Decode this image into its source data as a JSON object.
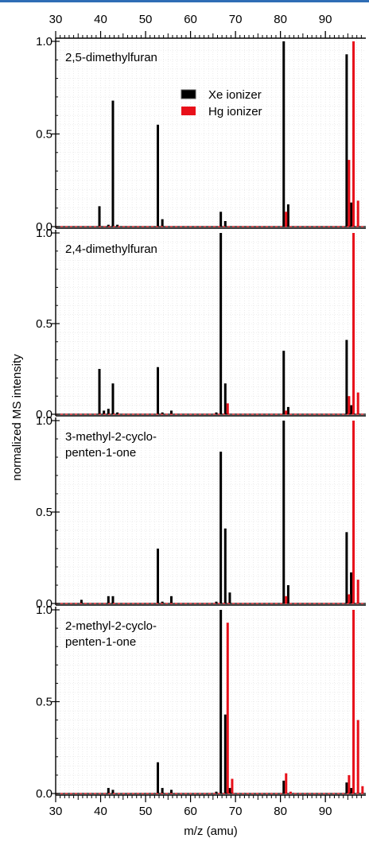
{
  "chart_data": {
    "type": "bar",
    "xlabel": "m/z (amu)",
    "ylabel": "normalized MS intensity",
    "xlim": [
      30,
      99
    ],
    "ylim": [
      0,
      1.0
    ],
    "x_ticks": [
      30,
      40,
      50,
      60,
      70,
      80,
      90
    ],
    "y_ticks": [
      "0.0",
      "0.5",
      "1.0"
    ],
    "legend": {
      "placement": "top-center of first panel",
      "entries": [
        {
          "name": "Xe ionizer",
          "color": "#000000"
        },
        {
          "name": "Hg ionizer",
          "color": "#e8101a"
        }
      ]
    },
    "panels": [
      {
        "label_lines": [
          "2,5-dimethylfuran"
        ],
        "series": [
          {
            "name": "Xe ionizer",
            "color": "#000000",
            "points": [
              [
                40,
                0.11
              ],
              [
                42,
                0.01
              ],
              [
                43,
                0.68
              ],
              [
                44,
                0.01
              ],
              [
                53,
                0.55
              ],
              [
                54,
                0.04
              ],
              [
                67,
                0.08
              ],
              [
                68,
                0.03
              ],
              [
                81,
                1.0
              ],
              [
                82,
                0.12
              ],
              [
                95,
                0.93
              ],
              [
                96,
                0.13
              ]
            ]
          },
          {
            "name": "Hg ionizer",
            "color": "#e8101a",
            "points": [
              [
                81,
                0.08
              ],
              [
                95,
                0.36
              ],
              [
                96,
                1.0
              ],
              [
                97,
                0.14
              ]
            ]
          }
        ]
      },
      {
        "label_lines": [
          "2,4-dimethylfuran"
        ],
        "series": [
          {
            "name": "Xe ionizer",
            "color": "#000000",
            "points": [
              [
                40,
                0.25
              ],
              [
                41,
                0.02
              ],
              [
                42,
                0.03
              ],
              [
                43,
                0.17
              ],
              [
                44,
                0.01
              ],
              [
                53,
                0.26
              ],
              [
                54,
                0.01
              ],
              [
                56,
                0.02
              ],
              [
                66,
                0.01
              ],
              [
                67,
                1.0
              ],
              [
                68,
                0.17
              ],
              [
                81,
                0.35
              ],
              [
                82,
                0.04
              ],
              [
                95,
                0.41
              ],
              [
                96,
                0.05
              ]
            ]
          },
          {
            "name": "Hg ionizer",
            "color": "#e8101a",
            "points": [
              [
                68,
                0.06
              ],
              [
                81,
                0.02
              ],
              [
                95,
                0.1
              ],
              [
                96,
                1.0
              ],
              [
                97,
                0.12
              ]
            ]
          }
        ]
      },
      {
        "label_lines": [
          "3-methyl-2-cyclo-",
          "penten-1-one"
        ],
        "series": [
          {
            "name": "Xe ionizer",
            "color": "#000000",
            "points": [
              [
                36,
                0.02
              ],
              [
                42,
                0.04
              ],
              [
                43,
                0.04
              ],
              [
                53,
                0.3
              ],
              [
                54,
                0.01
              ],
              [
                56,
                0.04
              ],
              [
                66,
                0.01
              ],
              [
                67,
                0.83
              ],
              [
                68,
                0.41
              ],
              [
                69,
                0.06
              ],
              [
                81,
                1.0
              ],
              [
                82,
                0.1
              ],
              [
                95,
                0.39
              ],
              [
                96,
                0.17
              ]
            ]
          },
          {
            "name": "Hg ionizer",
            "color": "#e8101a",
            "points": [
              [
                81,
                0.04
              ],
              [
                95,
                0.05
              ],
              [
                96,
                1.0
              ],
              [
                97,
                0.13
              ]
            ]
          }
        ]
      },
      {
        "label_lines": [
          "2-methyl-2-cyclo-",
          "penten-1-one"
        ],
        "series": [
          {
            "name": "Xe ionizer",
            "color": "#000000",
            "points": [
              [
                42,
                0.03
              ],
              [
                43,
                0.02
              ],
              [
                53,
                0.17
              ],
              [
                54,
                0.03
              ],
              [
                56,
                0.02
              ],
              [
                66,
                0.01
              ],
              [
                67,
                1.0
              ],
              [
                68,
                0.43
              ],
              [
                69,
                0.03
              ],
              [
                81,
                0.07
              ],
              [
                95,
                0.06
              ],
              [
                96,
                0.03
              ]
            ]
          },
          {
            "name": "Hg ionizer",
            "color": "#e8101a",
            "points": [
              [
                68,
                0.93
              ],
              [
                69,
                0.08
              ],
              [
                81,
                0.11
              ],
              [
                82,
                0.01
              ],
              [
                95,
                0.1
              ],
              [
                96,
                1.0
              ],
              [
                97,
                0.4
              ],
              [
                98,
                0.04
              ]
            ]
          }
        ]
      }
    ]
  }
}
